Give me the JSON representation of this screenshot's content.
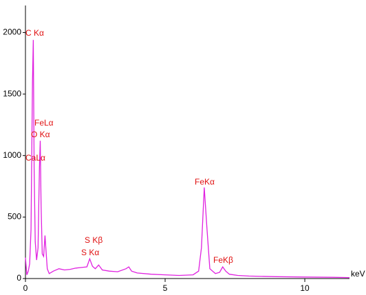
{
  "chart_data": {
    "type": "line",
    "x_unit": "keV",
    "x": [
      0,
      0.05,
      0.1,
      0.15,
      0.2,
      0.25,
      0.28,
      0.31,
      0.35,
      0.4,
      0.45,
      0.5,
      0.53,
      0.56,
      0.6,
      0.65,
      0.7,
      0.73,
      0.78,
      0.85,
      1.0,
      1.2,
      1.4,
      1.6,
      1.8,
      2.0,
      2.2,
      2.3,
      2.4,
      2.5,
      2.62,
      2.75,
      3.0,
      3.3,
      3.6,
      3.7,
      3.8,
      4.0,
      4.5,
      5.0,
      5.5,
      6.0,
      6.2,
      6.3,
      6.4,
      6.5,
      6.6,
      6.8,
      6.95,
      7.06,
      7.17,
      7.3,
      7.6,
      8.0,
      9.0,
      10.0,
      11.0,
      11.6
    ],
    "values": [
      170,
      30,
      60,
      120,
      400,
      1600,
      1940,
      900,
      300,
      150,
      250,
      900,
      1120,
      600,
      200,
      180,
      350,
      250,
      80,
      40,
      60,
      80,
      70,
      75,
      85,
      90,
      95,
      160,
      100,
      80,
      110,
      70,
      60,
      55,
      80,
      95,
      60,
      45,
      35,
      30,
      25,
      30,
      60,
      250,
      740,
      400,
      80,
      40,
      50,
      95,
      60,
      35,
      25,
      20,
      15,
      12,
      10,
      8
    ],
    "color": "#e020e0",
    "annotation_color": "#e01010",
    "annotations": [
      "C Kα",
      "FeLα",
      "O Kα",
      "CaLα",
      "S Kβ",
      "S Kα",
      "FeKα",
      "FeKβ"
    ],
    "xlim": [
      0,
      11.6
    ],
    "xticks": [
      0,
      5,
      10
    ],
    "ylim": [
      0,
      2220
    ],
    "yticks": [
      0,
      500,
      1000,
      1500,
      2000
    ],
    "grid": false
  }
}
